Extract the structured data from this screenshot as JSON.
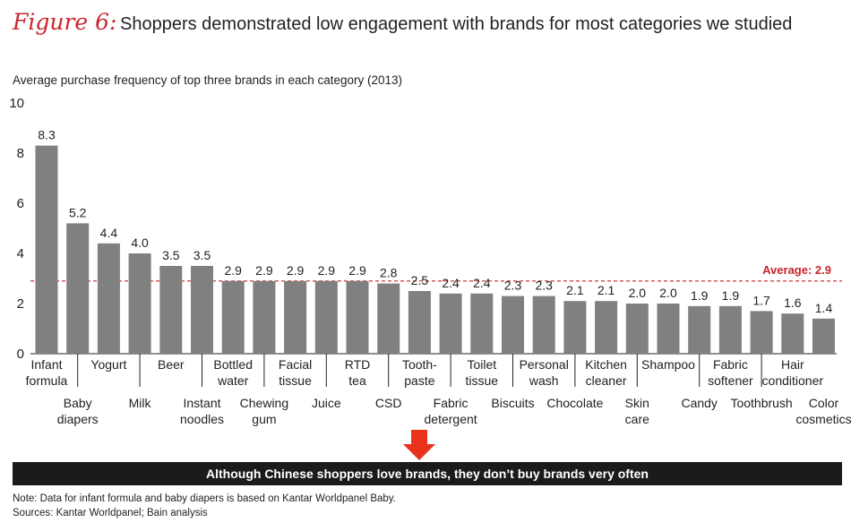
{
  "figure_label": "Figure 6:",
  "title": "Shoppers demonstrated low engagement with brands for most categories we studied",
  "banner_text": "Although Chinese shoppers love brands, they don’t buy brands very often",
  "note": "Note: Data for infant formula and baby diapers is based on Kantar Worldpanel Baby.",
  "sources": "Sources: Kantar Worldpanel; Bain analysis",
  "colors": {
    "bar": "#808080",
    "accent": "#c8252c",
    "banner": "#1b1b1b"
  },
  "chart_data": {
    "type": "bar",
    "subtitle": "Average purchase frequency of top three brands in each category (2013)",
    "ylim": [
      0,
      10
    ],
    "yticks": [
      "0",
      "2",
      "4",
      "6",
      "8",
      "10"
    ],
    "average": {
      "value": 2.9,
      "label": "Average: 2.9"
    },
    "categories": [
      [
        "Infant",
        "formula"
      ],
      [
        "Baby",
        "diapers"
      ],
      [
        "Yogurt"
      ],
      [
        "Milk"
      ],
      [
        "Beer"
      ],
      [
        "Instant",
        "noodles"
      ],
      [
        "Bottled",
        "water"
      ],
      [
        "Chewing",
        "gum"
      ],
      [
        "Facial",
        "tissue"
      ],
      [
        "Juice"
      ],
      [
        "RTD",
        "tea"
      ],
      [
        "CSD"
      ],
      [
        "Tooth-",
        "paste"
      ],
      [
        "Fabric",
        "detergent"
      ],
      [
        "Toilet",
        "tissue"
      ],
      [
        "Biscuits"
      ],
      [
        "Personal",
        "wash"
      ],
      [
        "Chocolate"
      ],
      [
        "Kitchen",
        "cleaner"
      ],
      [
        "Skin",
        "care"
      ],
      [
        "Shampoo"
      ],
      [
        "Candy"
      ],
      [
        "Fabric",
        "softener"
      ],
      [
        "Toothbrush"
      ],
      [
        "Hair",
        "conditioner"
      ],
      [
        "Color",
        "cosmetics"
      ]
    ],
    "values": [
      8.3,
      5.2,
      4.4,
      4.0,
      3.5,
      3.5,
      2.9,
      2.9,
      2.9,
      2.9,
      2.9,
      2.8,
      2.5,
      2.4,
      2.4,
      2.3,
      2.3,
      2.1,
      2.1,
      2.0,
      2.0,
      1.9,
      1.9,
      1.7,
      1.6,
      1.4
    ],
    "value_labels": [
      "8.3",
      "5.2",
      "4.4",
      "4.0",
      "3.5",
      "3.5",
      "2.9",
      "2.9",
      "2.9",
      "2.9",
      "2.9",
      "2.8",
      "2.5",
      "2.4",
      "2.4",
      "2.3",
      "2.3",
      "2.1",
      "2.1",
      "2.0",
      "2.0",
      "1.9",
      "1.9",
      "1.7",
      "1.6",
      "1.4"
    ]
  }
}
